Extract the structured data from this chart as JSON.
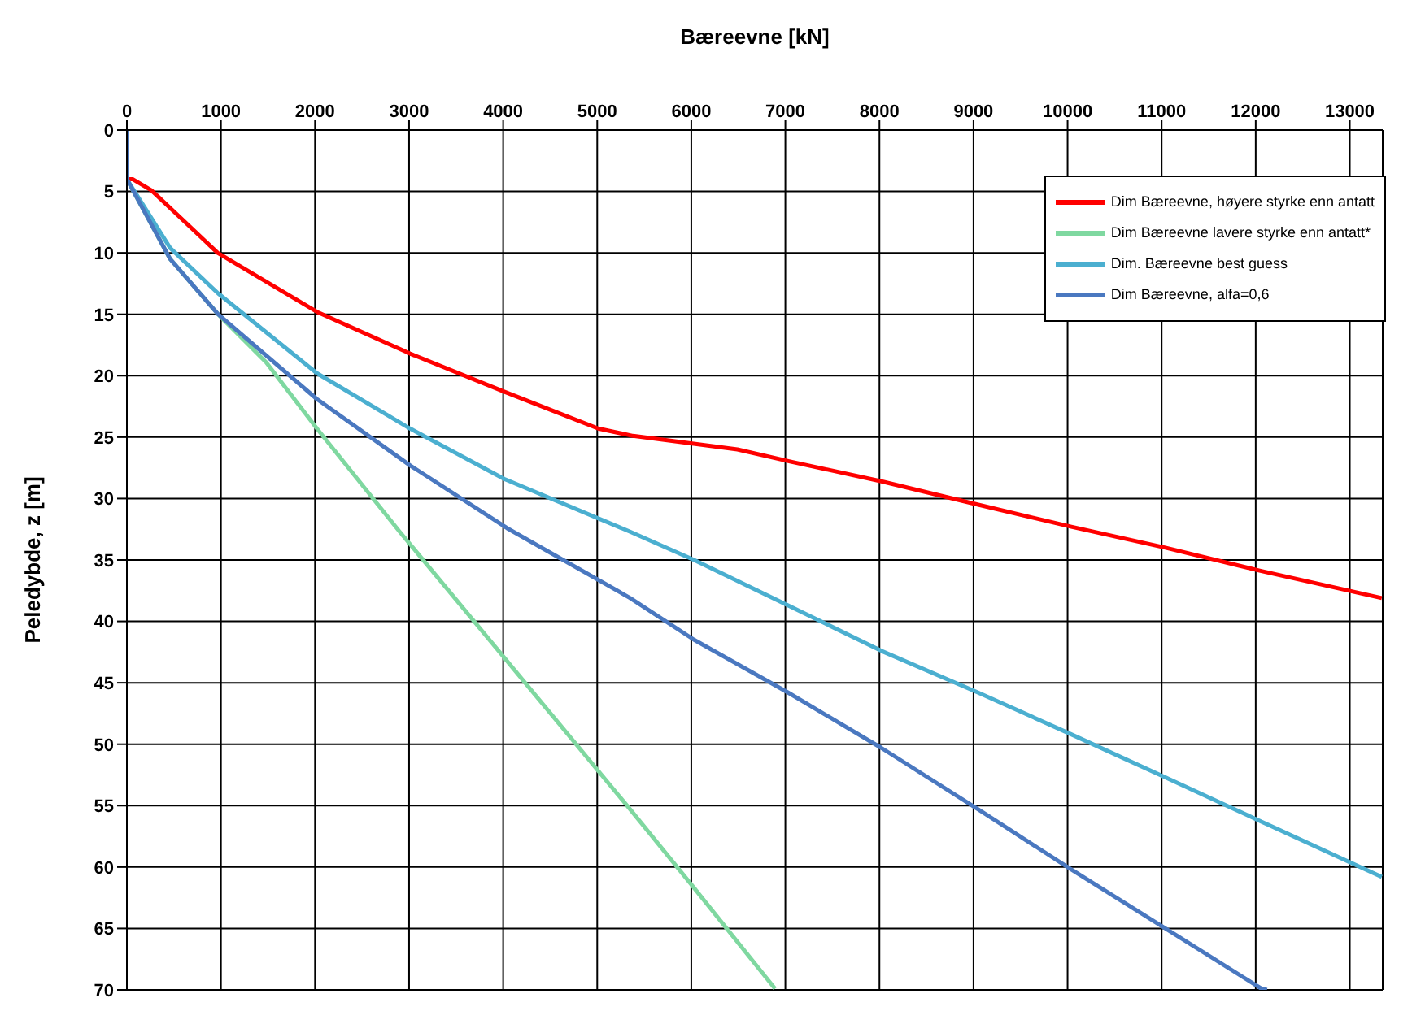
{
  "chart_data": {
    "type": "line",
    "xlabel": "Bæreevne  [kN]",
    "ylabel": "Peledybde, z  [m]",
    "xlim": [
      0,
      13350
    ],
    "xticks": [
      0,
      1000,
      2000,
      3000,
      4000,
      5000,
      6000,
      7000,
      8000,
      9000,
      10000,
      11000,
      12000,
      13000
    ],
    "ylim": [
      70,
      0
    ],
    "yticks": [
      0,
      5,
      10,
      15,
      20,
      25,
      30,
      35,
      40,
      45,
      50,
      55,
      60,
      65,
      70
    ],
    "grid": true,
    "legend": "top right",
    "marker": "none",
    "line_style": "solid",
    "series": [
      {
        "name": "Dim Bæreevne, høyere styrke enn antatt",
        "color": "#ff0000",
        "x": [
          0,
          0,
          60,
          260,
          965,
          2020,
          3010,
          4010,
          5010,
          5380,
          6490,
          7060,
          8020,
          9050,
          10040,
          11040,
          12060,
          13340
        ],
        "values": [
          0,
          4,
          4,
          4.9,
          10,
          14.8,
          18.2,
          21.3,
          24.3,
          24.9,
          26,
          27,
          28.6,
          30.5,
          32.3,
          34,
          35.9,
          38.1
        ]
      },
      {
        "name": "Dim Bæreevne lavere styrke enn antatt*",
        "color": "#7fd8a0",
        "x": [
          0,
          0,
          460,
          970,
          1480,
          2020,
          2900,
          5350,
          6030,
          6890
        ],
        "values": [
          0,
          4,
          10.5,
          15,
          18.9,
          24.3,
          32.7,
          55.3,
          61.7,
          69.9
        ]
      },
      {
        "name": "Dim. Bæreevne best guess",
        "color": "#4bafd0",
        "x": [
          0,
          0,
          460,
          970,
          2020,
          3010,
          4010,
          5350,
          6030,
          7030,
          8020,
          9050,
          10040,
          11040,
          12060,
          13340
        ],
        "values": [
          0,
          4,
          9.6,
          13.3,
          19.8,
          24.3,
          28.4,
          32.7,
          35,
          38.7,
          42.4,
          45.8,
          49.2,
          52.7,
          56.3,
          60.8
        ]
      },
      {
        "name": "Dim Bæreevne, alfa=0,6",
        "color": "#4a78c0",
        "x": [
          0,
          0,
          460,
          970,
          2020,
          3010,
          4040,
          5350,
          6030,
          7030,
          8020,
          9050,
          10040,
          11040,
          12060,
          12120
        ],
        "values": [
          0,
          4,
          10.5,
          15,
          21.9,
          27.3,
          32.4,
          38.1,
          41.5,
          45.8,
          50.3,
          55.3,
          60.2,
          65,
          69.9,
          70
        ]
      }
    ]
  }
}
